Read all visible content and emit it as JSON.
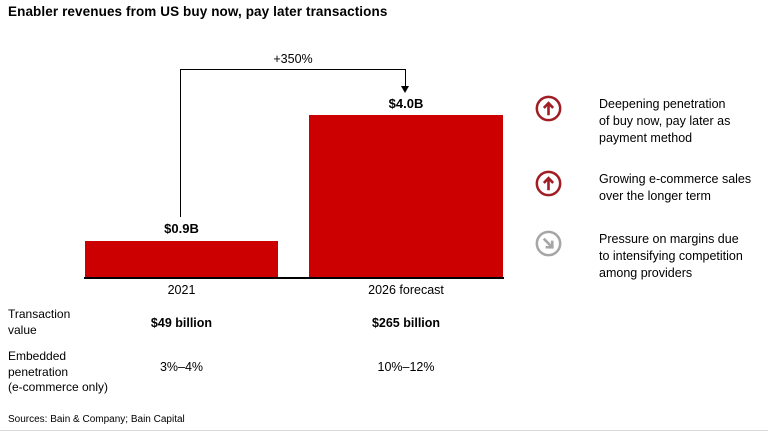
{
  "title": "Enabler revenues from US buy now, pay later transactions",
  "colors": {
    "bar-red": "#cc0000",
    "icon-red": "#a01e23",
    "icon-gray": "#a6a6a6"
  },
  "chart_data": {
    "type": "bar",
    "title": "Enabler revenues from US buy now, pay later transactions",
    "categories": [
      "2021",
      "2026 forecast"
    ],
    "values": [
      0.9,
      4.0
    ],
    "value_labels": [
      "$0.9B",
      "$4.0B"
    ],
    "growth_annotation": "+350%",
    "bar_color": "#cc0000",
    "grid": false,
    "table": {
      "rows": [
        {
          "label": "Transaction\nvalue",
          "values": [
            "$49 billion",
            "$265 billion"
          ],
          "bold_values": true
        },
        {
          "label": "Embedded\npenetration\n(e-commerce only)",
          "values": [
            "3%–4%",
            "10%–12%"
          ],
          "bold_values": false
        }
      ]
    }
  },
  "insights": [
    {
      "icon": "arrow-up-circle",
      "trend": "up",
      "text": "Deepening penetration\nof buy now, pay later as\npayment method"
    },
    {
      "icon": "arrow-up-circle",
      "trend": "up",
      "text": "Growing e-commerce sales\nover the longer term"
    },
    {
      "icon": "arrow-down-right-circle",
      "trend": "down",
      "text": "Pressure on margins due\nto intensifying competition\namong providers"
    }
  ],
  "footer": {
    "sources": "Sources: Bain & Company; Bain Capital"
  }
}
